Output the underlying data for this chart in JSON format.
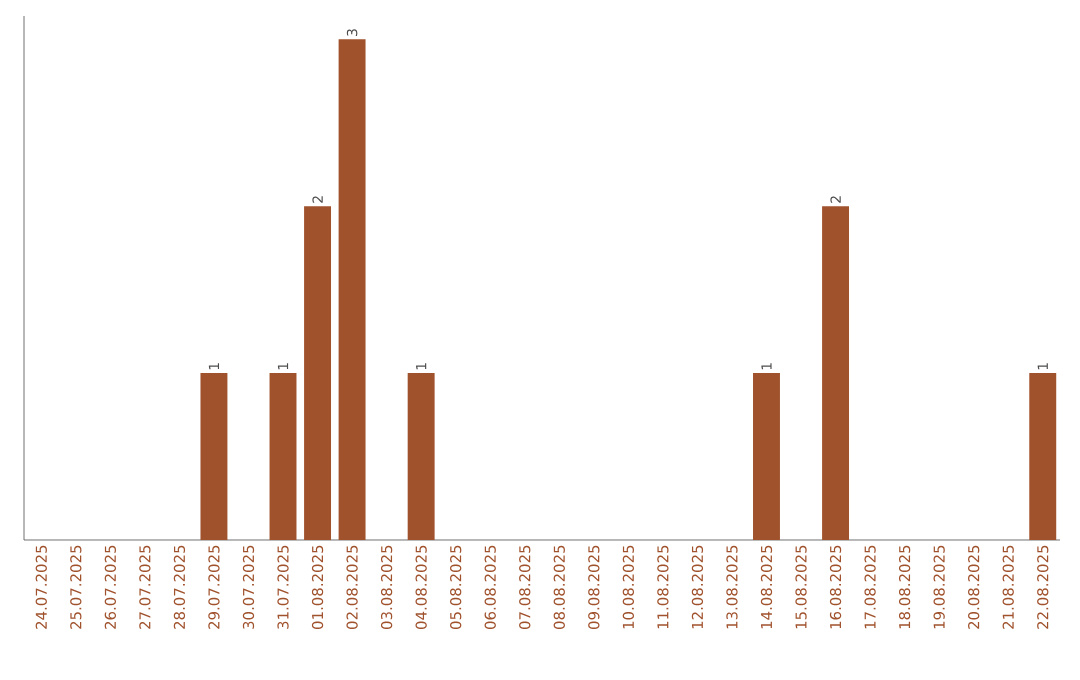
{
  "chart_data": {
    "type": "bar",
    "categories": [
      "24.07.2025",
      "25.07.2025",
      "26.07.2025",
      "27.07.2025",
      "28.07.2025",
      "29.07.2025",
      "30.07.2025",
      "31.07.2025",
      "01.08.2025",
      "02.08.2025",
      "03.08.2025",
      "04.08.2025",
      "05.08.2025",
      "06.08.2025",
      "07.08.2025",
      "08.08.2025",
      "09.08.2025",
      "10.08.2025",
      "11.08.2025",
      "12.08.2025",
      "13.08.2025",
      "14.08.2025",
      "15.08.2025",
      "16.08.2025",
      "17.08.2025",
      "18.08.2025",
      "19.08.2025",
      "20.08.2025",
      "21.08.2025",
      "22.08.2025"
    ],
    "values": [
      0,
      0,
      0,
      0,
      0,
      1,
      0,
      1,
      2,
      3,
      0,
      1,
      0,
      0,
      0,
      0,
      0,
      0,
      0,
      0,
      0,
      1,
      0,
      2,
      0,
      0,
      0,
      0,
      0,
      1
    ],
    "value_labels": [
      null,
      null,
      null,
      null,
      null,
      "1",
      null,
      "1",
      "2",
      "3",
      null,
      "1",
      null,
      null,
      null,
      null,
      null,
      null,
      null,
      null,
      null,
      "1",
      null,
      "2",
      null,
      null,
      null,
      null,
      null,
      "1"
    ],
    "color": "#a0522d",
    "ylim": [
      0,
      3.14
    ]
  }
}
